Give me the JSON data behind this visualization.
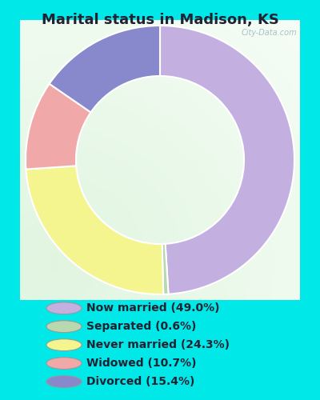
{
  "title": "Marital status in Madison, KS",
  "slices": [
    49.0,
    0.6,
    24.3,
    10.7,
    15.4
  ],
  "colors": [
    "#c4b0e0",
    "#b8d8b0",
    "#f5f590",
    "#f0a8a8",
    "#8888cc"
  ],
  "labels": [
    "Now married (49.0%)",
    "Separated (0.6%)",
    "Never married (24.3%)",
    "Widowed (10.7%)",
    "Divorced (15.4%)"
  ],
  "legend_colors": [
    "#c4b0e0",
    "#b8d8b0",
    "#f5f590",
    "#f0a8a8",
    "#8888cc"
  ],
  "bg_outer": "#00e8e8",
  "bg_chart_color": "#e8f5e8",
  "title_fontsize": 13,
  "legend_fontsize": 10,
  "watermark": "City-Data.com",
  "donut_width": 0.45,
  "start_angle": 90
}
